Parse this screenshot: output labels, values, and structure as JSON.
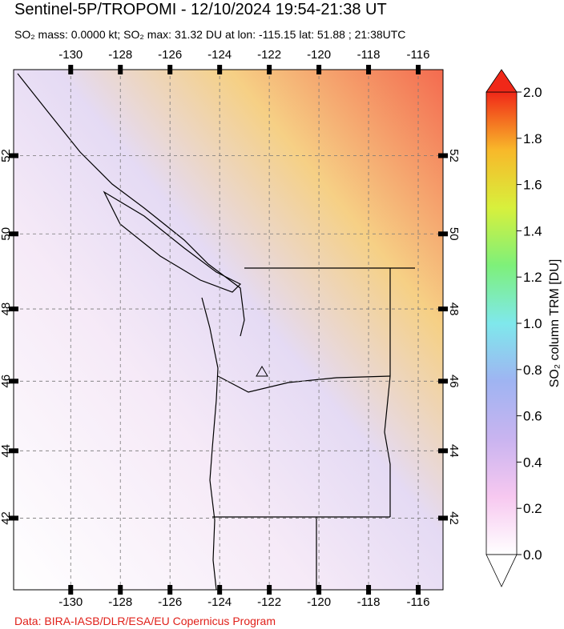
{
  "chart_data": {
    "type": "map",
    "title": "Sentinel-5P/TROPOMI - 12/10/2024 19:54-21:38 UT",
    "subtitle": "SO₂ mass: 0.0000 kt; SO₂ max: 31.32 DU at lon: -115.15 lat: 51.88 ; 21:38UTC",
    "xlim": [
      -132.3,
      -115.0
    ],
    "ylim": [
      39.8,
      54.1
    ],
    "xticks": [
      -130,
      -128,
      -126,
      -124,
      -122,
      -120,
      -118,
      -116
    ],
    "yticks": [
      42,
      44,
      46,
      48,
      50,
      52
    ],
    "grid": true,
    "colorbar": {
      "label": "SO₂ column TRM [DU]",
      "lim": [
        0,
        2
      ],
      "ticks": [
        {
          "value": 0,
          "label": "0.0"
        },
        {
          "value": 0.2,
          "label": "0.2"
        },
        {
          "value": 0.4,
          "label": "0.4"
        },
        {
          "value": 0.6,
          "label": "0.6"
        },
        {
          "value": 0.8,
          "label": "0.8"
        },
        {
          "value": 1,
          "label": "1.0"
        },
        {
          "value": 1.2,
          "label": "1.2"
        },
        {
          "value": 1.4,
          "label": "1.4"
        },
        {
          "value": 1.6,
          "label": "1.6"
        },
        {
          "value": 1.8,
          "label": "1.8"
        },
        {
          "value": 2,
          "label": "2.0"
        }
      ],
      "colormap": [
        "#ffffff",
        "#f7c8f0",
        "#c9b4f0",
        "#9fb4f2",
        "#7fe8ec",
        "#7ef07a",
        "#d8f03c",
        "#f8b82a",
        "#f02818"
      ]
    },
    "credit": "Data: BIRA-IASB/DLR/ESA/EU Copernicus Program"
  }
}
